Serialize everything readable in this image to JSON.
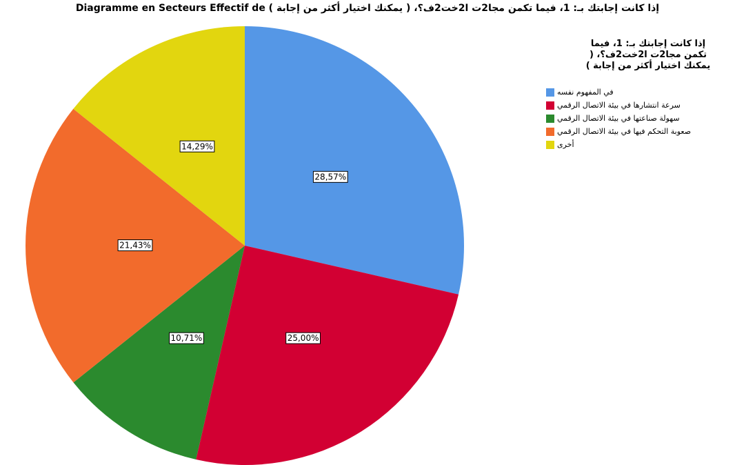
{
  "chart_data": {
    "type": "pie",
    "title": "Diagramme en Secteurs Effectif de ( إذا كانت إجابتك بـ: 1، فيما تكمن مجا2ت ا2خت2ف؟، ( يمكنك اختيار أكثر من إجابة",
    "legend_title": "إذا كانت إجابتك بـ: 1، فيما تكمن مجا2ت ا2خت2ف؟، ( يمكنك اختيار أكثر من إجابة )",
    "categories": [
      "في المفهوم نفسه",
      "سرعة انتشارها في بيئة الاتصال الرقمي",
      "سهولة صناعتها في بيئة الاتصال الرقمي",
      "صعوبة التحكم فيها في بيئة الاتصال الرقمي",
      "أخرى"
    ],
    "values": [
      28.57,
      25.0,
      10.71,
      21.43,
      14.29
    ],
    "value_labels": [
      "28,57%",
      "25,00%",
      "10,71%",
      "21,43%",
      "14,29%"
    ],
    "colors": [
      "#5597e6",
      "#d20033",
      "#2b8a2e",
      "#f26b2c",
      "#e2d60f"
    ]
  }
}
